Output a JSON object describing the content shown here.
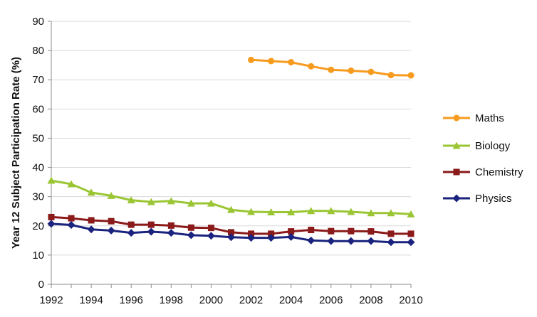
{
  "chart_data": {
    "type": "line",
    "title": "",
    "xlabel": "",
    "ylabel": "Year 12 Subject Participation Rate (%)",
    "xlim": [
      1992,
      2010
    ],
    "ylim": [
      0,
      90
    ],
    "x_ticks": [
      1992,
      1994,
      1996,
      1998,
      2000,
      2002,
      2004,
      2006,
      2008,
      2010
    ],
    "y_ticks": [
      0,
      10,
      20,
      30,
      40,
      50,
      60,
      70,
      80,
      90
    ],
    "grid": "horizontal",
    "legend_position": "right",
    "series": [
      {
        "name": "Maths",
        "color": "#f79b1e",
        "marker": "circle",
        "x": [
          2002,
          2003,
          2004,
          2005,
          2006,
          2007,
          2008,
          2009,
          2010
        ],
        "y": [
          76.8,
          76.4,
          76.0,
          74.6,
          73.4,
          73.1,
          72.7,
          71.6,
          71.5
        ]
      },
      {
        "name": "Biology",
        "color": "#9bc634",
        "marker": "triangle",
        "x": [
          1992,
          1993,
          1994,
          1995,
          1996,
          1997,
          1998,
          1999,
          2000,
          2001,
          2002,
          2003,
          2004,
          2005,
          2006,
          2007,
          2008,
          2009,
          2010
        ],
        "y": [
          35.5,
          34.3,
          31.4,
          30.3,
          28.8,
          28.2,
          28.5,
          27.7,
          27.7,
          25.5,
          24.8,
          24.7,
          24.7,
          25.1,
          25.1,
          24.8,
          24.4,
          24.4,
          24.0
        ]
      },
      {
        "name": "Chemistry",
        "color": "#8b1a1a",
        "marker": "square",
        "x": [
          1992,
          1993,
          1994,
          1995,
          1996,
          1997,
          1998,
          1999,
          2000,
          2001,
          2002,
          2003,
          2004,
          2005,
          2006,
          2007,
          2008,
          2009,
          2010
        ],
        "y": [
          23.0,
          22.6,
          21.9,
          21.6,
          20.4,
          20.4,
          20.1,
          19.4,
          19.3,
          17.8,
          17.3,
          17.3,
          18.1,
          18.6,
          18.2,
          18.2,
          18.1,
          17.3,
          17.3
        ]
      },
      {
        "name": "Physics",
        "color": "#1a237e",
        "marker": "diamond",
        "x": [
          1992,
          1993,
          1994,
          1995,
          1996,
          1997,
          1998,
          1999,
          2000,
          2001,
          2002,
          2003,
          2004,
          2005,
          2006,
          2007,
          2008,
          2009,
          2010
        ],
        "y": [
          20.7,
          20.3,
          18.8,
          18.4,
          17.6,
          18.0,
          17.6,
          16.8,
          16.6,
          16.1,
          15.9,
          15.9,
          16.2,
          15.0,
          14.8,
          14.8,
          14.8,
          14.4,
          14.4
        ]
      }
    ]
  }
}
